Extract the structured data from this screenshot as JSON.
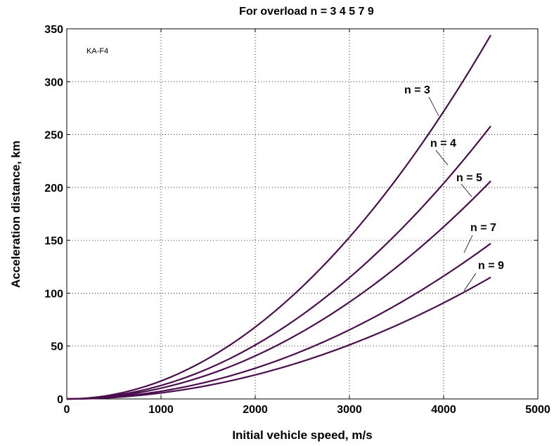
{
  "chart_data": {
    "type": "line",
    "title": "For overload n = 3  4  5  7  9",
    "xlabel": "Initial vehicle speed, m/s",
    "ylabel": "Acceleration distance, km",
    "annotation": "KA-F4",
    "xlim": [
      0,
      5000
    ],
    "ylim": [
      0,
      350
    ],
    "xticks": [
      0,
      1000,
      2000,
      3000,
      4000,
      5000
    ],
    "yticks": [
      0,
      50,
      100,
      150,
      200,
      250,
      300,
      350
    ],
    "grid": true,
    "line_color": "#4a0e4e",
    "x": [
      0,
      500,
      1000,
      1500,
      2000,
      2500,
      3000,
      3500,
      4000,
      4500
    ],
    "series": [
      {
        "name": "n = 3",
        "values": [
          0,
          4,
          17,
          38,
          68,
          106,
          153,
          208,
          272,
          344
        ]
      },
      {
        "name": "n = 4",
        "values": [
          0,
          3,
          13,
          29,
          51,
          80,
          115,
          156,
          204,
          258
        ]
      },
      {
        "name": "n = 5",
        "values": [
          0,
          3,
          10,
          23,
          41,
          64,
          92,
          125,
          163,
          206
        ]
      },
      {
        "name": "n = 7",
        "values": [
          0,
          2,
          7,
          16,
          29,
          46,
          66,
          90,
          116,
          147
        ]
      },
      {
        "name": "n = 9",
        "values": [
          0,
          1,
          6,
          13,
          23,
          36,
          51,
          70,
          91,
          115
        ]
      }
    ]
  }
}
